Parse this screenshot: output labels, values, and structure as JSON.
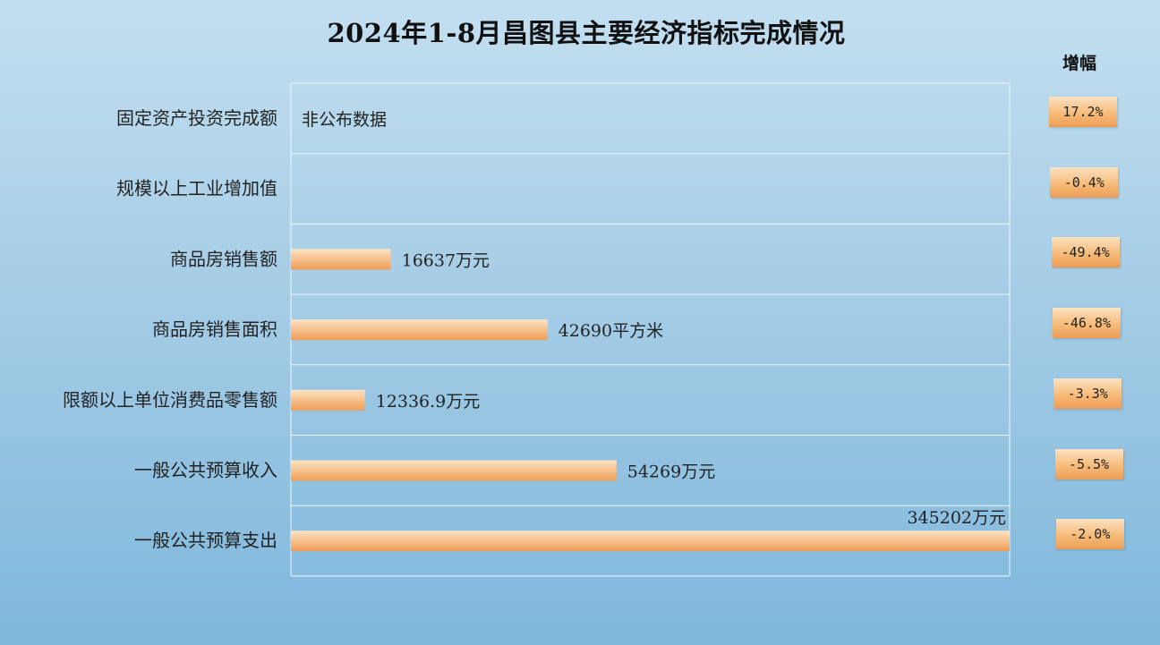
{
  "title": "2024年1-8月昌图县主要经济指标完成情况",
  "growth_header": "增幅",
  "colors": {
    "bar_light": "#fde3c4",
    "bar_dark": "#ef9d55",
    "grid": "#eef6fb"
  },
  "chart_data": {
    "type": "bar",
    "orientation": "horizontal",
    "title": "2024年1-8月昌图县主要经济指标完成情况",
    "categories": [
      "固定资产投资完成额",
      "规模以上工业增加值",
      "商品房销售额",
      "商品房销售面积",
      "限额以上单位消费品零售额",
      "一般公共预算收入",
      "一般公共预算支出"
    ],
    "values": [
      null,
      null,
      16637,
      42690,
      12336.9,
      54269,
      345202
    ],
    "value_labels": [
      "非公布数据",
      "",
      "16637万元",
      "42690平方米",
      "12336.9万元",
      "54269万元",
      "345202万元"
    ],
    "bar_fraction": [
      0,
      0,
      0.139,
      0.357,
      0.103,
      0.453,
      1.0
    ],
    "growth": [
      "17.2%",
      "-0.4%",
      "-49.4%",
      "-46.8%",
      "-3.3%",
      "-5.5%",
      "-2.0%"
    ],
    "grid": true
  }
}
